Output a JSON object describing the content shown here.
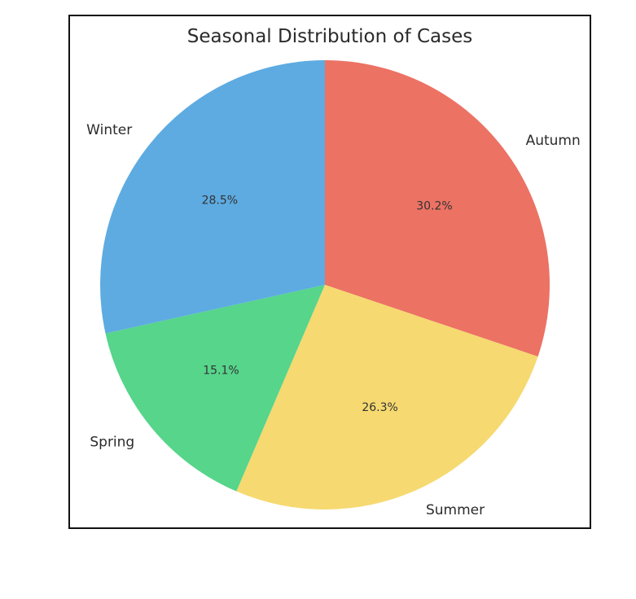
{
  "chart_data": {
    "type": "pie",
    "title": "Seasonal Distribution of Cases",
    "categories": [
      "Autumn",
      "Summer",
      "Spring",
      "Winter"
    ],
    "values": [
      30.2,
      26.3,
      15.1,
      28.5
    ],
    "percent_labels": [
      "30.2%",
      "26.3%",
      "15.1%",
      "28.5%"
    ],
    "colors": [
      "#ec7264",
      "#f6d970",
      "#56d58b",
      "#5dabe1"
    ],
    "start_angle_deg": 90,
    "direction": "clockwise",
    "legend": "none"
  }
}
